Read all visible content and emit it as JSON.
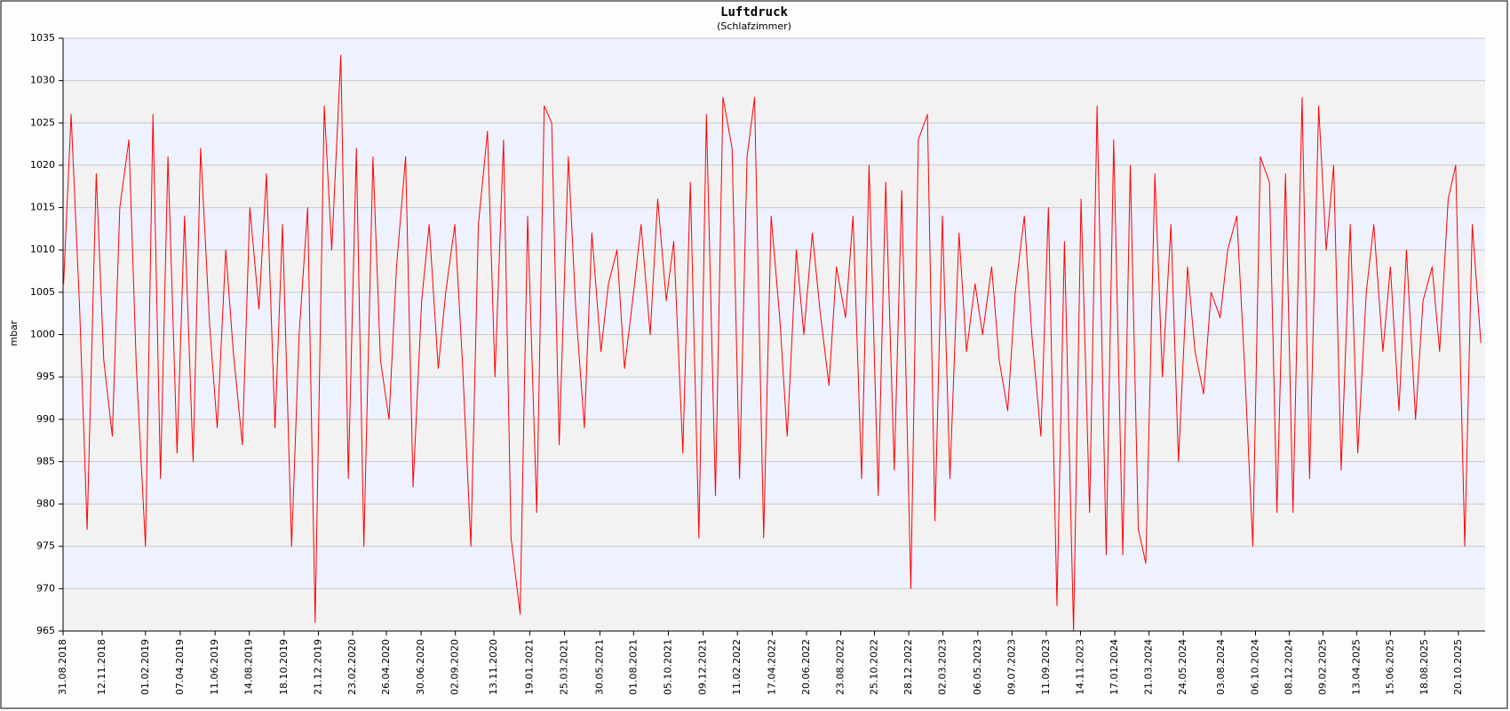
{
  "chart_data": {
    "type": "line",
    "title": "Luftdruck",
    "subtitle": "(Schlafzimmer)",
    "y_label": "mbar",
    "grid": true,
    "band_colors": [
      "#eef2fe",
      "#f2f2f2"
    ],
    "ylim": [
      965,
      1035
    ],
    "yticks": [
      965,
      970,
      975,
      980,
      985,
      990,
      995,
      1000,
      1005,
      1010,
      1015,
      1020,
      1025,
      1030,
      1035
    ],
    "xlim": [
      "31.08.2018",
      "09.12.2025"
    ],
    "xticks": [
      "31.08.2018",
      "12.11.2018",
      "01.02.2019",
      "07.04.2019",
      "11.06.2019",
      "14.08.2019",
      "18.10.2019",
      "21.12.2019",
      "23.02.2020",
      "26.04.2020",
      "30.06.2020",
      "02.09.2020",
      "13.11.2020",
      "19.01.2021",
      "25.03.2021",
      "30.05.2021",
      "01.08.2021",
      "05.10.2021",
      "09.12.2021",
      "11.02.2022",
      "17.04.2022",
      "20.06.2022",
      "23.08.2022",
      "25.10.2022",
      "28.12.2022",
      "02.03.2023",
      "06.05.2023",
      "09.07.2023",
      "11.09.2023",
      "14.11.2023",
      "17.01.2024",
      "21.03.2024",
      "24.05.2024",
      "03.08.2024",
      "06.10.2024",
      "08.12.2024",
      "09.02.2025",
      "13.04.2025",
      "15.06.2025",
      "18.08.2025",
      "20.10.2025"
    ],
    "x": [
      "01.09.2018",
      "15.09.2018",
      "01.10.2018",
      "15.10.2018",
      "01.11.2018",
      "15.11.2018",
      "01.12.2018",
      "15.12.2018",
      "01.01.2019",
      "15.01.2019",
      "01.02.2019",
      "15.02.2019",
      "01.03.2019",
      "15.03.2019",
      "01.04.2019",
      "15.04.2019",
      "01.05.2019",
      "15.05.2019",
      "01.06.2019",
      "15.06.2019",
      "01.07.2019",
      "15.07.2019",
      "01.08.2019",
      "15.08.2019",
      "01.09.2019",
      "15.09.2019",
      "01.10.2019",
      "15.10.2019",
      "01.11.2019",
      "15.11.2019",
      "01.12.2019",
      "15.12.2019",
      "01.01.2020",
      "15.01.2020",
      "01.02.2020",
      "15.02.2020",
      "01.03.2020",
      "15.03.2020",
      "01.04.2020",
      "15.04.2020",
      "01.05.2020",
      "15.05.2020",
      "01.06.2020",
      "15.06.2020",
      "01.07.2020",
      "15.07.2020",
      "01.08.2020",
      "15.08.2020",
      "01.09.2020",
      "15.09.2020",
      "01.10.2020",
      "15.10.2020",
      "01.11.2020",
      "15.11.2020",
      "01.12.2020",
      "15.12.2020",
      "01.01.2021",
      "15.01.2021",
      "01.02.2021",
      "15.02.2021",
      "01.03.2021",
      "15.03.2021",
      "01.04.2021",
      "15.04.2021",
      "01.05.2021",
      "15.05.2021",
      "01.06.2021",
      "15.06.2021",
      "01.07.2021",
      "15.07.2021",
      "01.08.2021",
      "15.08.2021",
      "01.09.2021",
      "15.09.2021",
      "01.10.2021",
      "15.10.2021",
      "01.11.2021",
      "15.11.2021",
      "01.12.2021",
      "15.12.2021",
      "01.01.2022",
      "15.01.2022",
      "01.02.2022",
      "15.02.2022",
      "01.03.2022",
      "15.03.2022",
      "01.04.2022",
      "15.04.2022",
      "01.05.2022",
      "15.05.2022",
      "01.06.2022",
      "15.06.2022",
      "01.07.2022",
      "15.07.2022",
      "01.08.2022",
      "15.08.2022",
      "01.09.2022",
      "15.09.2022",
      "01.10.2022",
      "15.10.2022",
      "01.11.2022",
      "15.11.2022",
      "01.12.2022",
      "15.12.2022",
      "01.01.2023",
      "15.01.2023",
      "01.02.2023",
      "15.02.2023",
      "01.03.2023",
      "15.03.2023",
      "01.04.2023",
      "15.04.2023",
      "01.05.2023",
      "15.05.2023",
      "01.06.2023",
      "15.06.2023",
      "01.07.2023",
      "15.07.2023",
      "01.08.2023",
      "15.08.2023",
      "01.09.2023",
      "15.09.2023",
      "01.10.2023",
      "15.10.2023",
      "01.11.2023",
      "15.11.2023",
      "01.12.2023",
      "15.12.2023",
      "01.01.2024",
      "15.01.2024",
      "01.02.2024",
      "15.02.2024",
      "01.03.2024",
      "15.03.2024",
      "01.04.2024",
      "15.04.2024",
      "01.05.2024",
      "15.05.2024",
      "01.06.2024",
      "15.06.2024",
      "01.07.2024",
      "15.07.2024",
      "01.08.2024",
      "15.08.2024",
      "01.09.2024",
      "15.09.2024",
      "01.10.2024",
      "15.10.2024",
      "01.11.2024",
      "15.11.2024",
      "01.12.2024",
      "15.12.2024",
      "01.01.2025",
      "15.01.2025",
      "01.02.2025",
      "15.02.2025",
      "01.03.2025",
      "15.03.2025",
      "01.04.2025",
      "15.04.2025",
      "01.05.2025",
      "15.05.2025",
      "01.06.2025",
      "15.06.2025",
      "01.07.2025",
      "15.07.2025",
      "01.08.2025",
      "15.08.2025",
      "01.09.2025",
      "15.09.2025",
      "01.10.2025",
      "15.10.2025",
      "01.11.2025",
      "15.11.2025",
      "01.12.2025"
    ],
    "series": [
      {
        "name": "Luftdruck",
        "color": "#ff0000",
        "values": [
          1006,
          1026,
          1003,
          977,
          1019,
          997,
          988,
          1015,
          1023,
          996,
          975,
          1026,
          983,
          1021,
          986,
          1014,
          985,
          1022,
          1001,
          989,
          1010,
          998,
          987,
          1015,
          1003,
          1019,
          989,
          1013,
          975,
          1000,
          1015,
          966,
          1027,
          1010,
          1033,
          983,
          1022,
          975,
          1021,
          997,
          990,
          1008,
          1021,
          982,
          1004,
          1013,
          996,
          1005,
          1013,
          997,
          975,
          1013,
          1024,
          995,
          1023,
          976,
          967,
          1014,
          979,
          1027,
          1025,
          987,
          1021,
          1003,
          989,
          1012,
          998,
          1006,
          1010,
          996,
          1005,
          1013,
          1000,
          1016,
          1004,
          1011,
          986,
          1018,
          976,
          1026,
          981,
          1028,
          1022,
          983,
          1021,
          1028,
          976,
          1014,
          1002,
          988,
          1010,
          1000,
          1012,
          1003,
          994,
          1008,
          1002,
          1014,
          983,
          1020,
          981,
          1018,
          984,
          1017,
          970,
          1023,
          1026,
          978,
          1014,
          983,
          1012,
          998,
          1006,
          1000,
          1008,
          997,
          991,
          1005,
          1014,
          1000,
          988,
          1015,
          968,
          1011,
          965,
          1016,
          979,
          1027,
          974,
          1023,
          974,
          1020,
          977,
          973,
          1019,
          995,
          1013,
          985,
          1008,
          998,
          993,
          1005,
          1002,
          1010,
          1014,
          997,
          975,
          1021,
          1018,
          979,
          1019,
          979,
          1028,
          983,
          1027,
          1010,
          1020,
          984,
          1013,
          986,
          1005,
          1013,
          998,
          1008,
          991,
          1010,
          990,
          1004,
          1008,
          998,
          1016,
          1020,
          975,
          1013,
          999
        ]
      }
    ]
  }
}
